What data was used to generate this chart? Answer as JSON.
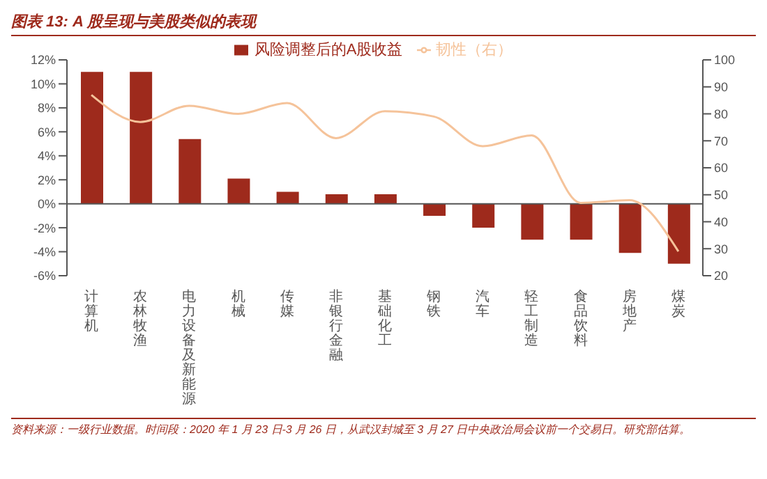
{
  "chart_data": {
    "type": "bar",
    "title": "图表 13: A 股呈现与美股类似的表现",
    "categories": [
      "计算机",
      "农林牧渔",
      "电力设备及新能源",
      "机械",
      "传媒",
      "非银行金融",
      "基础化工",
      "钢铁",
      "汽车",
      "轻工制造",
      "食品饮料",
      "房地产",
      "煤炭"
    ],
    "series": [
      {
        "name": "风险调整后的A股收益",
        "color": "#9e2a1c",
        "values": [
          11,
          11,
          5.4,
          2.1,
          1.0,
          0.8,
          0.8,
          -1.0,
          -2.0,
          -3.0,
          -3.0,
          -4.1,
          -5.0
        ]
      },
      {
        "name": "韧性（右）",
        "type": "line",
        "axis": "y2",
        "color": "#f5c39a",
        "values": [
          87,
          77,
          83,
          80,
          84,
          71,
          81,
          79,
          68,
          72,
          47,
          48,
          29
        ]
      }
    ],
    "ylim": [
      -6,
      12
    ],
    "yticks": [
      {
        "value": -6,
        "label": "-6%"
      },
      {
        "value": -4,
        "label": "-4%"
      },
      {
        "value": -2,
        "label": "-2%"
      },
      {
        "value": 0,
        "label": "0%"
      },
      {
        "value": 2,
        "label": "2%"
      },
      {
        "value": 4,
        "label": "4%"
      },
      {
        "value": 6,
        "label": "6%"
      },
      {
        "value": 8,
        "label": "8%"
      },
      {
        "value": 10,
        "label": "10%"
      },
      {
        "value": 12,
        "label": "12%"
      }
    ],
    "y2lim": [
      20,
      100
    ],
    "y2ticks": [
      20,
      30,
      40,
      50,
      60,
      70,
      80,
      90,
      100
    ],
    "legend": "top",
    "annotations": [
      "资料来源：一级行业数据。时间段：2020 年 1 月 23 日-3 月 26 日，从武汉封城至 3 月 27 日中央政治局会议前一个交易日。研究部估算。"
    ]
  }
}
